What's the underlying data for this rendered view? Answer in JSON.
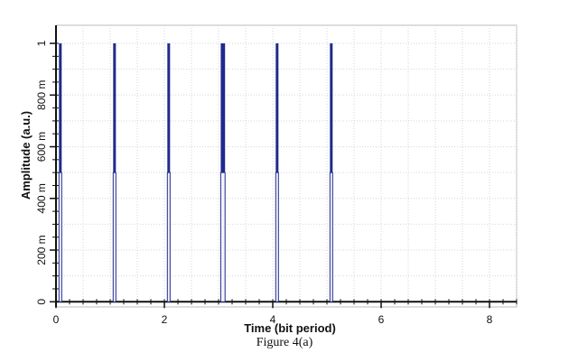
{
  "chart_data": {
    "type": "line",
    "title": "",
    "xlabel": "Time (bit period)",
    "ylabel": "Amplitude (a.u.)",
    "xlim": [
      0,
      8.5
    ],
    "ylim": [
      -0.02,
      1.07
    ],
    "grid": true,
    "x_ticks": [
      {
        "value": 0,
        "label": "0"
      },
      {
        "value": 2,
        "label": "2"
      },
      {
        "value": 4,
        "label": "4"
      },
      {
        "value": 6,
        "label": "6"
      },
      {
        "value": 8,
        "label": "8"
      }
    ],
    "y_ticks": [
      {
        "value": 0,
        "label": "0"
      },
      {
        "value": 0.2,
        "label": "200 m"
      },
      {
        "value": 0.4,
        "label": "400 m"
      },
      {
        "value": 0.6,
        "label": "600 m"
      },
      {
        "value": 0.8,
        "label": "800 m"
      },
      {
        "value": 1,
        "label": "1"
      }
    ],
    "series": [
      {
        "color": "#1f2a8c",
        "pulses": [
          {
            "t": 0.08,
            "width": 0.05,
            "amplitude": 1.0
          },
          {
            "t": 1.08,
            "width": 0.05,
            "amplitude": 1.0
          },
          {
            "t": 2.08,
            "width": 0.05,
            "amplitude": 1.0
          },
          {
            "t": 3.08,
            "width": 0.08,
            "amplitude": 1.0
          },
          {
            "t": 4.08,
            "width": 0.05,
            "amplitude": 1.0
          },
          {
            "t": 5.08,
            "width": 0.05,
            "amplitude": 1.0
          }
        ]
      }
    ]
  },
  "caption": "Figure 4(a)"
}
